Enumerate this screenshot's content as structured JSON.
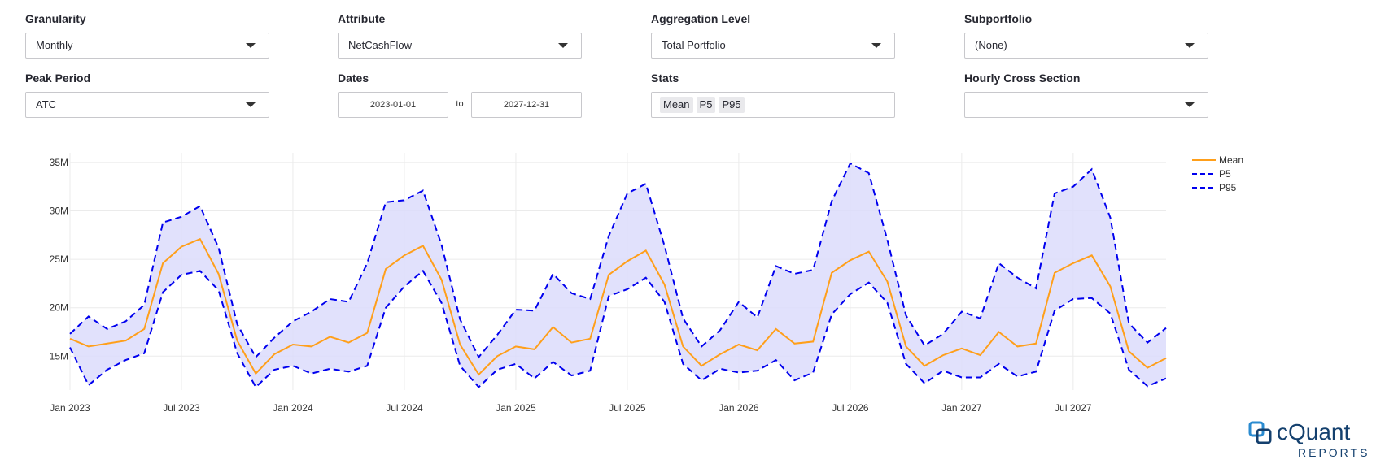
{
  "controls": {
    "granularity": {
      "label": "Granularity",
      "value": "Monthly"
    },
    "attribute": {
      "label": "Attribute",
      "value": "NetCashFlow"
    },
    "aggregation": {
      "label": "Aggregation Level",
      "value": "Total Portfolio"
    },
    "subportfolio": {
      "label": "Subportfolio",
      "value": "(None)"
    },
    "peak_period": {
      "label": "Peak Period",
      "value": "ATC"
    },
    "dates": {
      "label": "Dates",
      "start": "2023-01-01",
      "separator": "to",
      "end": "2027-12-31"
    },
    "stats": {
      "label": "Stats",
      "tags": [
        "Mean",
        "P5",
        "P95"
      ]
    },
    "hourly": {
      "label": "Hourly Cross Section",
      "value": ""
    }
  },
  "logo": {
    "name": "cQuant",
    "sub": "REPORTS"
  },
  "colors": {
    "mean": "#ff9f1a",
    "p5": "#0000ee",
    "p95": "#0000ee",
    "band": "#dcdcfb"
  },
  "chart_data": {
    "type": "line",
    "x_start": "2023-01",
    "x_tick_labels": [
      "Jan 2023",
      "Jul 2023",
      "Jan 2024",
      "Jul 2024",
      "Jan 2025",
      "Jul 2025",
      "Jan 2026",
      "Jul 2026",
      "Jan 2027",
      "Jul 2027"
    ],
    "y_tick_labels": [
      "15M",
      "20M",
      "25M",
      "30M",
      "35M"
    ],
    "y_tick_values": [
      15,
      20,
      25,
      30,
      35
    ],
    "y_unit": "M",
    "ylim": [
      11.5,
      36
    ],
    "legend_position": "top-right",
    "grid": true,
    "series": [
      {
        "name": "Mean",
        "style": "solid",
        "values": [
          16.8,
          16.0,
          16.3,
          16.6,
          17.8,
          24.6,
          26.3,
          27.1,
          23.5,
          16.6,
          13.2,
          15.2,
          16.2,
          16.0,
          17.0,
          16.4,
          17.4,
          24.0,
          25.4,
          26.4,
          22.9,
          16.2,
          13.1,
          15.0,
          16.0,
          15.7,
          18.0,
          16.4,
          16.8,
          23.4,
          24.8,
          25.9,
          22.4,
          16.0,
          14.0,
          15.2,
          16.2,
          15.6,
          17.8,
          16.3,
          16.5,
          23.6,
          24.9,
          25.8,
          22.7,
          16.0,
          14.0,
          15.1,
          15.8,
          15.1,
          17.5,
          16.0,
          16.3,
          23.6,
          24.6,
          25.4,
          22.2,
          15.5,
          13.8,
          14.8
        ]
      },
      {
        "name": "P5",
        "style": "dash",
        "values": [
          15.9,
          12.0,
          13.6,
          14.6,
          15.3,
          21.6,
          23.4,
          23.8,
          21.8,
          15.3,
          11.8,
          13.6,
          14.0,
          13.2,
          13.7,
          13.4,
          14.0,
          20.0,
          22.2,
          23.8,
          20.5,
          14.0,
          11.8,
          13.6,
          14.2,
          12.7,
          14.4,
          13.0,
          13.5,
          21.2,
          21.9,
          23.1,
          20.6,
          14.2,
          12.5,
          13.7,
          13.3,
          13.5,
          14.6,
          12.5,
          13.3,
          19.3,
          21.4,
          22.6,
          20.5,
          14.2,
          12.2,
          13.5,
          12.8,
          12.8,
          14.2,
          12.9,
          13.4,
          19.7,
          20.9,
          21.0,
          19.4,
          13.6,
          11.9,
          12.7
        ]
      },
      {
        "name": "P95",
        "style": "dash",
        "values": [
          17.3,
          19.1,
          17.8,
          18.6,
          20.3,
          28.8,
          29.4,
          30.5,
          26.2,
          18.3,
          14.9,
          16.9,
          18.6,
          19.6,
          20.9,
          20.6,
          24.6,
          30.9,
          31.1,
          32.1,
          26.5,
          18.8,
          14.9,
          17.2,
          19.8,
          19.7,
          23.5,
          21.5,
          20.9,
          27.4,
          31.8,
          32.8,
          26.4,
          18.9,
          16.0,
          17.7,
          20.6,
          19.0,
          24.3,
          23.5,
          23.9,
          31.0,
          34.9,
          33.9,
          27.0,
          19.2,
          16.1,
          17.3,
          19.6,
          18.9,
          24.6,
          23.1,
          22.0,
          31.8,
          32.5,
          34.3,
          29.3,
          18.4,
          16.4,
          17.9
        ]
      }
    ]
  }
}
